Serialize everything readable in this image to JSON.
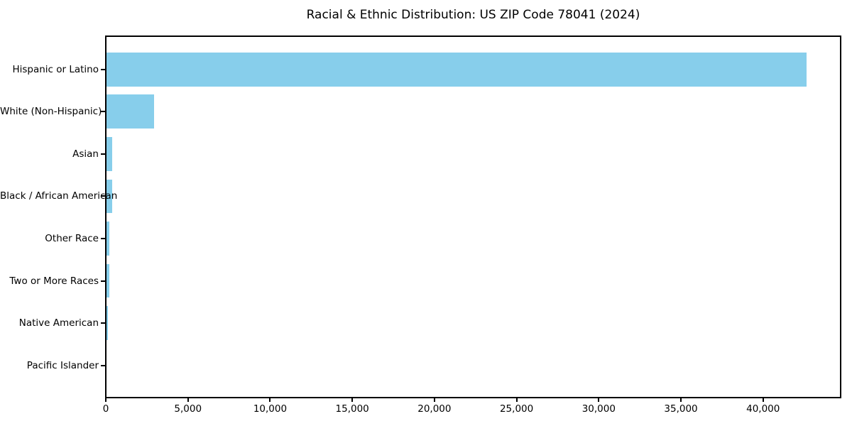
{
  "chart_data": {
    "type": "bar",
    "orientation": "horizontal",
    "title": "Racial & Ethnic Distribution: US ZIP Code 78041 (2024)",
    "categories": [
      "Hispanic or Latino",
      "White (Non-Hispanic)",
      "Asian",
      "Black / African American",
      "Other Race",
      "Two or More Races",
      "Native American",
      "Pacific Islander"
    ],
    "values": [
      42600,
      2900,
      350,
      330,
      165,
      180,
      65,
      10
    ],
    "xlabel": "",
    "ylabel": "",
    "xlim": [
      0,
      44720
    ],
    "xticks": [
      0,
      5000,
      10000,
      15000,
      20000,
      25000,
      30000,
      35000,
      40000
    ],
    "xtick_labels": [
      "0",
      "5,000",
      "10,000",
      "15,000",
      "20,000",
      "25,000",
      "30,000",
      "35,000",
      "40,000"
    ],
    "grid": false,
    "legend": "none",
    "bar_color": "#87CEEB",
    "axis_color": "#000000",
    "background_color": "#ffffff"
  }
}
